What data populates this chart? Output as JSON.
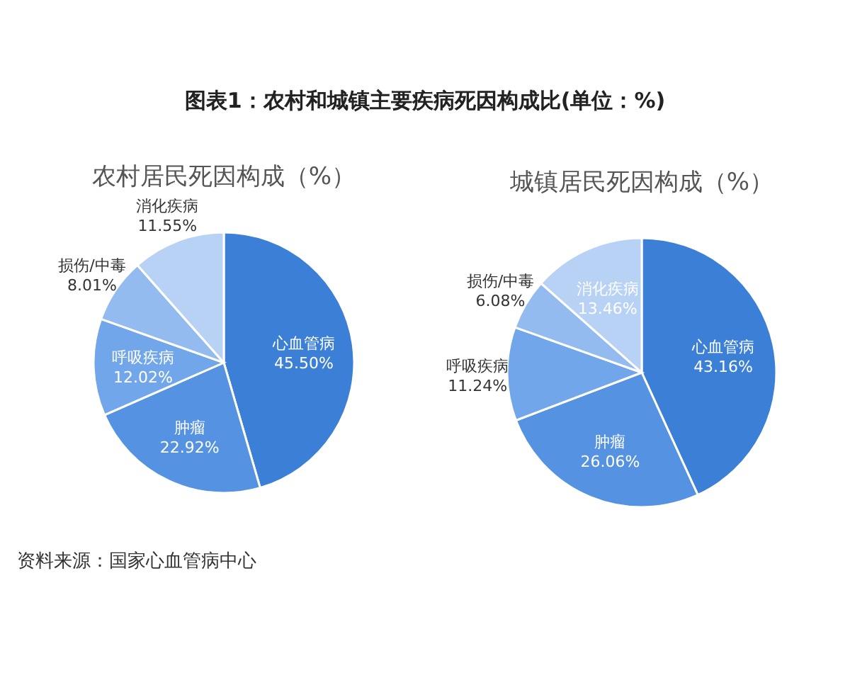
{
  "chart_data": [
    {
      "type": "pie",
      "title": "图表1：农村和城镇主要疾病死因构成比(单位：%)",
      "subtitle": "农村居民死因构成（%）",
      "categories": [
        "心血管病",
        "肿瘤",
        "呼吸疾病",
        "损伤/中毒",
        "消化疾病"
      ],
      "values": [
        45.5,
        22.92,
        12.02,
        8.01,
        11.55
      ],
      "value_labels": [
        "45.50%",
        "22.92%",
        "12.02%",
        "8.01%",
        "11.55%"
      ],
      "colors": [
        "#3b7fd6",
        "#5592e2",
        "#72a6ea",
        "#93bbf0",
        "#b7d2f5"
      ],
      "legend": false
    },
    {
      "type": "pie",
      "subtitle": "城镇居民死因构成（%）",
      "categories": [
        "心血管病",
        "肿瘤",
        "呼吸疾病",
        "损伤/中毒",
        "消化疾病"
      ],
      "values": [
        43.16,
        26.06,
        11.24,
        6.08,
        13.46
      ],
      "value_labels": [
        "43.16%",
        "26.06%",
        "11.24%",
        "6.08%",
        "13.46%"
      ],
      "colors": [
        "#3b7fd6",
        "#5592e2",
        "#72a6ea",
        "#93bbf0",
        "#b7d2f5"
      ],
      "legend": false,
      "annotations": [
        "资料来源：国家心血管病中心"
      ]
    }
  ]
}
